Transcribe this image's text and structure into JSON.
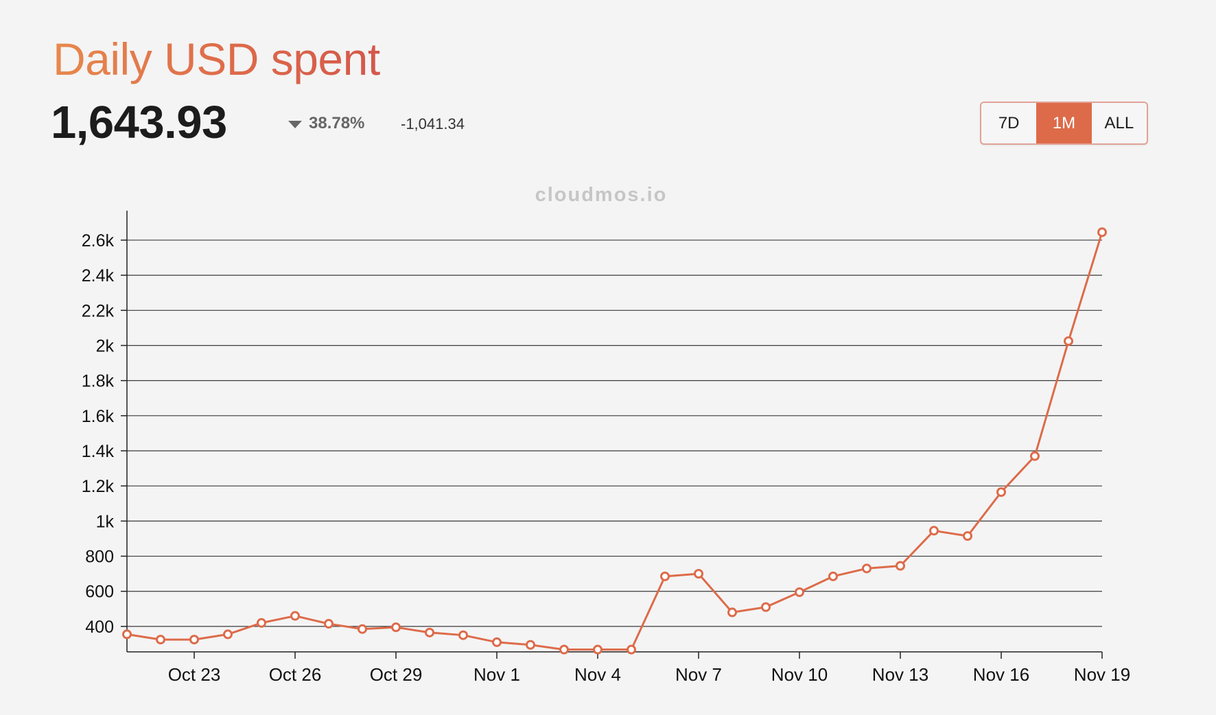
{
  "header": {
    "title": "Daily USD spent",
    "value": "1,643.93",
    "change_percent": "38.78%",
    "change_direction": "down",
    "change_abs": "-1,041.34"
  },
  "range_selector": {
    "options": [
      "7D",
      "1M",
      "ALL"
    ],
    "selected": "1M"
  },
  "watermark": "cloudmos.io",
  "colors": {
    "accent": "#dd6b4a",
    "title_gradient_start": "#e8884d",
    "title_gradient_end": "#d4574a",
    "background": "#f4f4f4",
    "grid": "#3a3a3a"
  },
  "chart_data": {
    "type": "line",
    "title": "",
    "xlabel": "",
    "ylabel": "",
    "x": [
      "Oct 21",
      "Oct 22",
      "Oct 23",
      "Oct 24",
      "Oct 25",
      "Oct 26",
      "Oct 27",
      "Oct 28",
      "Oct 29",
      "Oct 30",
      "Oct 31",
      "Nov 1",
      "Nov 2",
      "Nov 3",
      "Nov 4",
      "Nov 5",
      "Nov 6",
      "Nov 7",
      "Nov 8",
      "Nov 9",
      "Nov 10",
      "Nov 11",
      "Nov 12",
      "Nov 13",
      "Nov 14",
      "Nov 15",
      "Nov 16",
      "Nov 17",
      "Nov 18",
      "Nov 19"
    ],
    "series": [
      {
        "values": [
          355,
          325,
          325,
          355,
          420,
          460,
          415,
          385,
          395,
          365,
          350,
          310,
          295,
          268,
          268,
          268,
          685,
          700,
          480,
          510,
          595,
          685,
          730,
          745,
          945,
          915,
          1165,
          1370,
          2025,
          2645
        ]
      }
    ],
    "ylim": [
      255,
      2760
    ],
    "yticks": [
      400,
      600,
      800,
      1000,
      1200,
      1400,
      1600,
      1800,
      2000,
      2200,
      2400,
      2600
    ],
    "ytick_labels": [
      "400",
      "600",
      "800",
      "1k",
      "1.2k",
      "1.4k",
      "1.6k",
      "1.8k",
      "2k",
      "2.2k",
      "2.4k",
      "2.6k"
    ],
    "xtick_labels": [
      "Oct 23",
      "Oct 26",
      "Oct 29",
      "Nov 1",
      "Nov 4",
      "Nov 7",
      "Nov 10",
      "Nov 13",
      "Nov 16",
      "Nov 19"
    ],
    "grid": true,
    "legend": "none"
  }
}
